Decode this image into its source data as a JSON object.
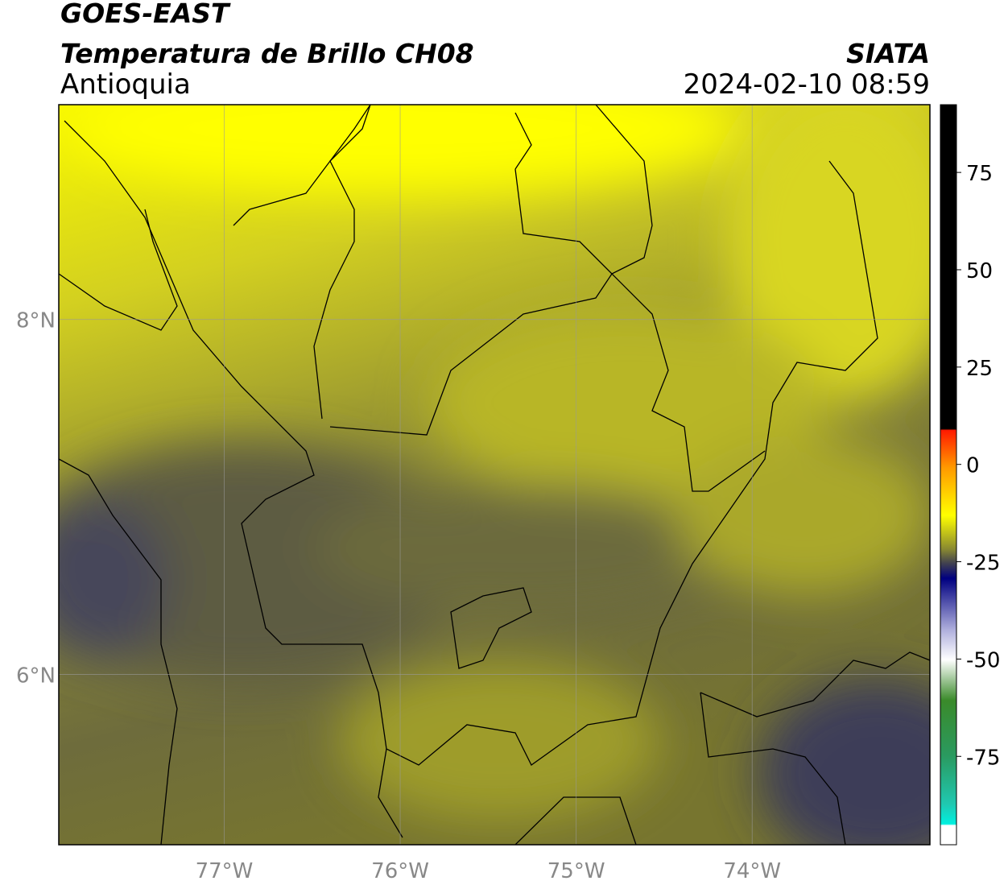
{
  "header": {
    "title": "GOES-EAST",
    "subtitle": "Temperatura de Brillo CH08",
    "region": "Antioquia",
    "source": "SIATA",
    "timestamp": "2024-02-10 08:59"
  },
  "map": {
    "xlim": [
      -77.94,
      -72.99
    ],
    "ylim": [
      5.04,
      9.21
    ],
    "xticks": [
      {
        "value": -77,
        "label": "77°W"
      },
      {
        "value": -76,
        "label": "76°W"
      },
      {
        "value": -75,
        "label": "75°W"
      },
      {
        "value": -74,
        "label": "74°W"
      }
    ],
    "yticks": [
      {
        "value": 8,
        "label": "8°N"
      },
      {
        "value": 6,
        "label": "6°N"
      }
    ],
    "grid": true
  },
  "colorbar": {
    "lim": [
      -97.7,
      92.4
    ],
    "ticks": [
      75,
      50,
      25,
      0,
      -25,
      -50,
      -75
    ]
  }
}
